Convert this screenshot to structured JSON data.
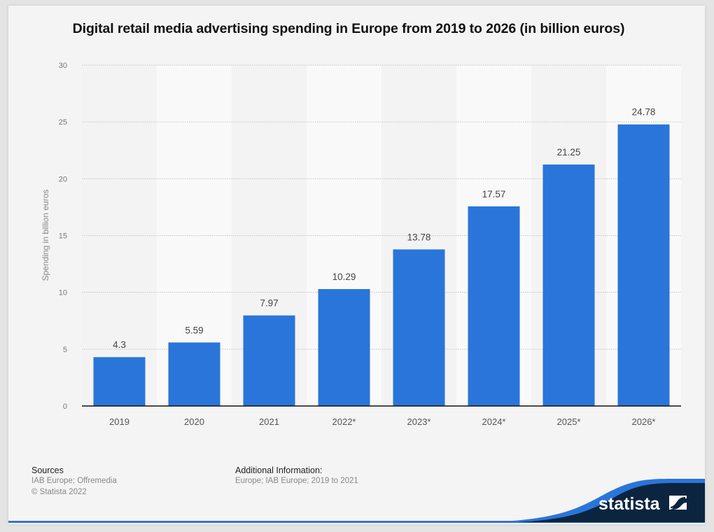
{
  "chart_data": {
    "type": "bar",
    "title": "Digital retail media advertising spending in Europe from 2019 to 2026 (in billion euros)",
    "xlabel": "",
    "ylabel": "Spending in billion euros",
    "categories": [
      "2019",
      "2020",
      "2021",
      "2022*",
      "2023*",
      "2024*",
      "2025*",
      "2026*"
    ],
    "values": [
      4.3,
      5.59,
      7.97,
      10.29,
      13.78,
      17.57,
      21.25,
      24.78
    ],
    "value_labels": [
      "4.3",
      "5.59",
      "7.97",
      "10.29",
      "13.78",
      "17.57",
      "21.25",
      "24.78"
    ],
    "ylim": [
      0,
      30
    ],
    "yticks": [
      0,
      5,
      10,
      15,
      20,
      25,
      30
    ],
    "grid": true,
    "legend": "none",
    "bar_color": "#2a75d9"
  },
  "footer": {
    "sources_heading": "Sources",
    "sources_lines": [
      "IAB Europe; Offremedia",
      "© Statista 2022"
    ],
    "additional_heading": "Additional Information:",
    "additional_lines": [
      "Europe; IAB Europe; 2019 to 2021"
    ]
  },
  "brand": {
    "name": "statista",
    "primary_color": "#0b2540",
    "accent_color": "#2a75d9"
  }
}
